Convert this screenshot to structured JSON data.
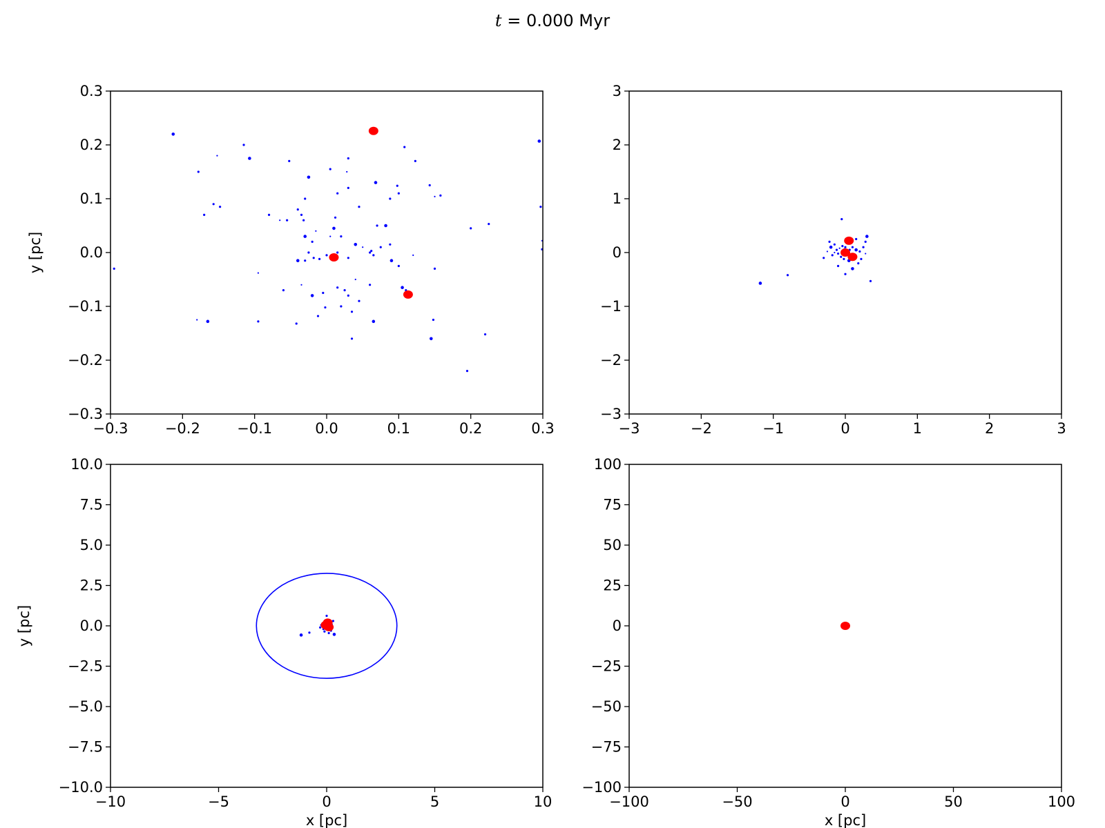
{
  "figure": {
    "title_var": "t",
    "title_rest": " = 0.000 Myr"
  },
  "chart_data": [
    {
      "type": "scatter",
      "xlim": [
        -0.3,
        0.3
      ],
      "ylim": [
        -0.3,
        0.3
      ],
      "xlabel": "",
      "ylabel": "y [pc]",
      "xticks": [
        "−0.3",
        "−0.2",
        "−0.1",
        "0.0",
        "0.1",
        "0.2",
        "0.3"
      ],
      "yticks": [
        "−0.3",
        "−0.2",
        "−0.1",
        "0.0",
        "0.1",
        "0.2",
        "0.3"
      ],
      "xtick_values": [
        -0.3,
        -0.2,
        -0.1,
        0.0,
        0.1,
        0.2,
        0.3
      ],
      "ytick_values": [
        -0.3,
        -0.2,
        -0.1,
        0.0,
        0.1,
        0.2,
        0.3
      ],
      "series": [
        {
          "color": "#0000ff",
          "points": [
            [
              -0.213,
              0.22
            ],
            [
              -0.295,
              -0.03
            ],
            [
              -0.178,
              0.15
            ],
            [
              -0.152,
              0.18
            ],
            [
              -0.115,
              0.2
            ],
            [
              -0.107,
              0.175
            ],
            [
              -0.157,
              0.09
            ],
            [
              -0.17,
              0.07
            ],
            [
              -0.148,
              0.085
            ],
            [
              -0.08,
              0.07
            ],
            [
              -0.065,
              0.06
            ],
            [
              -0.055,
              0.06
            ],
            [
              -0.04,
              0.08
            ],
            [
              -0.035,
              0.07
            ],
            [
              -0.032,
              0.06
            ],
            [
              -0.03,
              0.03
            ],
            [
              -0.02,
              0.02
            ],
            [
              -0.015,
              0.04
            ],
            [
              -0.025,
              0.0
            ],
            [
              -0.03,
              -0.015
            ],
            [
              -0.04,
              -0.015
            ],
            [
              -0.018,
              -0.01
            ],
            [
              -0.01,
              -0.012
            ],
            [
              0.0,
              -0.005
            ],
            [
              0.005,
              0.03
            ],
            [
              0.01,
              0.045
            ],
            [
              0.012,
              0.065
            ],
            [
              0.015,
              0.0
            ],
            [
              0.02,
              0.03
            ],
            [
              0.03,
              -0.01
            ],
            [
              0.04,
              0.015
            ],
            [
              0.05,
              0.01
            ],
            [
              0.06,
              0.0
            ],
            [
              0.065,
              -0.005
            ],
            [
              0.075,
              0.01
            ],
            [
              0.082,
              0.05
            ],
            [
              0.088,
              0.015
            ],
            [
              0.07,
              0.05
            ],
            [
              -0.035,
              -0.06
            ],
            [
              -0.06,
              -0.07
            ],
            [
              -0.02,
              -0.08
            ],
            [
              -0.005,
              -0.075
            ],
            [
              0.015,
              -0.065
            ],
            [
              0.025,
              -0.07
            ],
            [
              0.03,
              -0.08
            ],
            [
              0.04,
              -0.05
            ],
            [
              0.02,
              -0.1
            ],
            [
              0.035,
              -0.11
            ],
            [
              0.045,
              -0.09
            ],
            [
              0.06,
              -0.06
            ],
            [
              0.105,
              -0.065
            ],
            [
              0.11,
              -0.07
            ],
            [
              0.12,
              -0.005
            ],
            [
              0.15,
              -0.03
            ],
            [
              0.148,
              -0.125
            ],
            [
              0.145,
              -0.16
            ],
            [
              0.195,
              -0.22
            ],
            [
              0.22,
              -0.152
            ],
            [
              0.035,
              -0.16
            ],
            [
              -0.18,
              -0.125
            ],
            [
              -0.165,
              -0.128
            ],
            [
              -0.095,
              -0.128
            ],
            [
              -0.042,
              -0.132
            ],
            [
              -0.012,
              -0.118
            ],
            [
              -0.002,
              -0.102
            ],
            [
              0.065,
              -0.128
            ],
            [
              -0.095,
              -0.038
            ],
            [
              0.098,
              0.124
            ],
            [
              0.1,
              0.11
            ],
            [
              0.088,
              0.1
            ],
            [
              0.068,
              0.13
            ],
            [
              0.045,
              0.085
            ],
            [
              0.03,
              0.175
            ],
            [
              0.028,
              0.15
            ],
            [
              0.005,
              0.155
            ],
            [
              -0.025,
              0.14
            ],
            [
              -0.03,
              0.1
            ],
            [
              -0.052,
              0.17
            ],
            [
              0.108,
              0.196
            ],
            [
              0.123,
              0.17
            ],
            [
              0.15,
              0.104
            ],
            [
              0.158,
              0.106
            ],
            [
              0.143,
              0.125
            ],
            [
              0.2,
              0.045
            ],
            [
              0.225,
              0.053
            ],
            [
              0.295,
              0.207
            ],
            [
              0.297,
              0.085
            ],
            [
              0.299,
              0.022
            ],
            [
              0.299,
              0.006
            ],
            [
              0.062,
              0.003
            ],
            [
              0.09,
              -0.015
            ],
            [
              0.1,
              -0.025
            ],
            [
              0.03,
              0.12
            ],
            [
              0.015,
              0.11
            ]
          ]
        },
        {
          "color": "#ff0000",
          "points": [
            [
              0.065,
              0.226
            ],
            [
              0.01,
              -0.009
            ],
            [
              0.113,
              -0.078
            ]
          ]
        }
      ]
    },
    {
      "type": "scatter",
      "xlim": [
        -3,
        3
      ],
      "ylim": [
        -3,
        3
      ],
      "xlabel": "",
      "ylabel": "",
      "xticks": [
        "−3",
        "−2",
        "−1",
        "0",
        "1",
        "2",
        "3"
      ],
      "yticks": [
        "−3",
        "−2",
        "−1",
        "0",
        "1",
        "2",
        "3"
      ],
      "xtick_values": [
        -3,
        -2,
        -1,
        0,
        1,
        2,
        3
      ],
      "ytick_values": [
        -3,
        -2,
        -1,
        0,
        1,
        2,
        3
      ],
      "series": [
        {
          "color": "#0000ff",
          "points": [
            [
              -1.18,
              -0.57
            ],
            [
              -0.8,
              -0.42
            ],
            [
              -0.3,
              -0.1
            ],
            [
              -0.25,
              0.02
            ],
            [
              -0.22,
              0.2
            ],
            [
              -0.2,
              0.1
            ],
            [
              -0.18,
              -0.05
            ],
            [
              -0.15,
              0.15
            ],
            [
              -0.12,
              0.05
            ],
            [
              -0.1,
              -0.02
            ],
            [
              -0.08,
              0.08
            ],
            [
              -0.06,
              -0.08
            ],
            [
              -0.04,
              0.12
            ],
            [
              -0.03,
              0.02
            ],
            [
              -0.02,
              -0.12
            ],
            [
              -0.01,
              0.05
            ],
            [
              0.0,
              0.1
            ],
            [
              0.02,
              -0.05
            ],
            [
              0.03,
              0.0
            ],
            [
              0.04,
              0.18
            ],
            [
              0.05,
              -0.15
            ],
            [
              0.06,
              0.05
            ],
            [
              0.08,
              -0.04
            ],
            [
              0.1,
              0.1
            ],
            [
              0.12,
              -0.08
            ],
            [
              0.15,
              0.05
            ],
            [
              0.18,
              -0.2
            ],
            [
              0.2,
              0.02
            ],
            [
              0.25,
              0.1
            ],
            [
              0.28,
              0.2
            ],
            [
              0.3,
              0.3
            ],
            [
              0.28,
              -0.02
            ],
            [
              0.35,
              -0.53
            ],
            [
              0.0,
              -0.4
            ],
            [
              -0.05,
              0.62
            ],
            [
              0.1,
              -0.3
            ],
            [
              -0.1,
              -0.25
            ],
            [
              0.15,
              0.25
            ],
            [
              -0.15,
              0.0
            ],
            [
              0.22,
              -0.12
            ]
          ]
        },
        {
          "color": "#ff0000",
          "points": [
            [
              0.05,
              0.22
            ],
            [
              0.0,
              0.0
            ],
            [
              0.1,
              -0.08
            ]
          ]
        }
      ]
    },
    {
      "type": "scatter",
      "xlim": [
        -10,
        10
      ],
      "ylim": [
        -10,
        10
      ],
      "xlabel": "x [pc]",
      "ylabel": "y [pc]",
      "xticks": [
        "−10",
        "−5",
        "0",
        "5",
        "10"
      ],
      "yticks": [
        "−10.0",
        "−7.5",
        "−5.0",
        "−2.5",
        "0.0",
        "2.5",
        "5.0",
        "7.5",
        "10.0"
      ],
      "xtick_values": [
        -10,
        -5,
        0,
        5,
        10
      ],
      "ytick_values": [
        -10,
        -7.5,
        -5,
        -2.5,
        0,
        2.5,
        5,
        7.5,
        10
      ],
      "circle": {
        "center": [
          0,
          0
        ],
        "radius": 3.25,
        "color": "#0000ff"
      },
      "series": [
        {
          "color": "#0000ff",
          "points": [
            [
              -1.18,
              -0.57
            ],
            [
              -0.8,
              -0.42
            ],
            [
              -0.3,
              -0.1
            ],
            [
              -0.2,
              0.15
            ],
            [
              0.0,
              0.62
            ],
            [
              0.35,
              -0.53
            ],
            [
              0.3,
              0.3
            ],
            [
              -0.15,
              -0.2
            ],
            [
              0.2,
              -0.3
            ],
            [
              -0.25,
              0.05
            ],
            [
              0.25,
              0.1
            ],
            [
              0.1,
              -0.45
            ],
            [
              -0.05,
              0.3
            ],
            [
              0.15,
              0.2
            ],
            [
              -0.1,
              -0.35
            ]
          ]
        },
        {
          "color": "#ff0000",
          "points": [
            [
              0.05,
              0.2
            ],
            [
              0.0,
              0.0
            ],
            [
              0.1,
              -0.08
            ],
            [
              -0.05,
              0.05
            ]
          ]
        }
      ]
    },
    {
      "type": "scatter",
      "xlim": [
        -100,
        100
      ],
      "ylim": [
        -100,
        100
      ],
      "xlabel": "x [pc]",
      "ylabel": "",
      "xticks": [
        "−100",
        "−50",
        "0",
        "50",
        "100"
      ],
      "yticks": [
        "−100",
        "−75",
        "−50",
        "−25",
        "0",
        "25",
        "50",
        "75",
        "100"
      ],
      "xtick_values": [
        -100,
        -50,
        0,
        50,
        100
      ],
      "ytick_values": [
        -100,
        -75,
        -50,
        -25,
        0,
        25,
        50,
        75,
        100
      ],
      "series": [
        {
          "color": "#ff0000",
          "points": [
            [
              0.0,
              0.0
            ]
          ]
        }
      ]
    }
  ]
}
